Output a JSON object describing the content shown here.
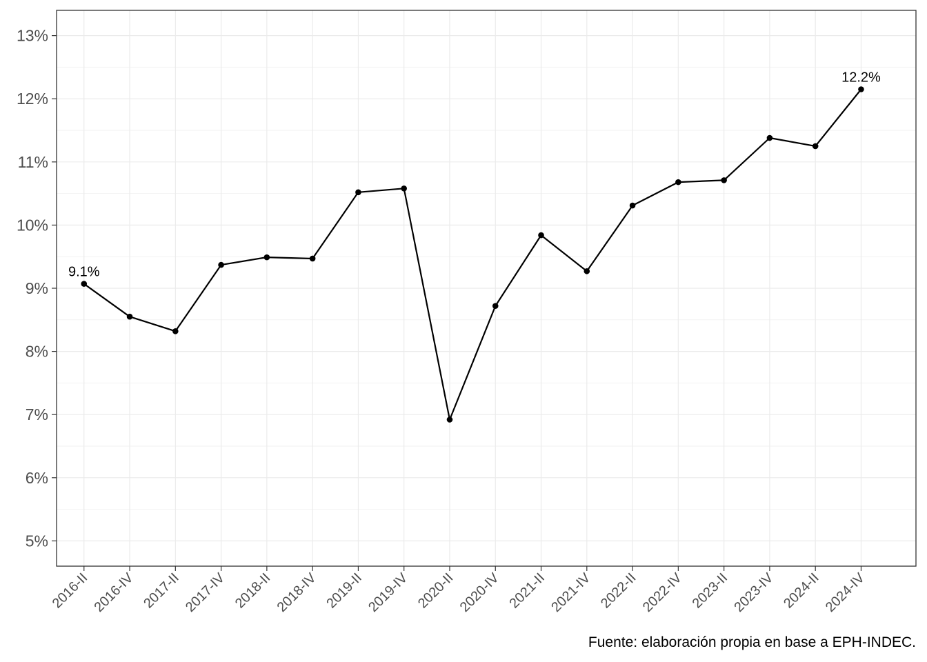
{
  "chart_data": {
    "type": "line",
    "title": "",
    "xlabel": "",
    "ylabel": "",
    "categories": [
      "2016-II",
      "2016-IV",
      "2017-II",
      "2017-IV",
      "2018-II",
      "2018-IV",
      "2019-II",
      "2019-IV",
      "2020-II",
      "2020-IV",
      "2021-II",
      "2021-IV",
      "2022-II",
      "2022-IV",
      "2023-II",
      "2023-IV",
      "2024-II",
      "2024-IV"
    ],
    "series": [
      {
        "values": [
          9.07,
          8.55,
          8.32,
          9.37,
          9.49,
          9.47,
          10.52,
          10.58,
          6.92,
          8.72,
          9.84,
          9.27,
          10.31,
          10.68,
          10.71,
          11.38,
          11.25,
          12.15
        ]
      }
    ],
    "y_ticks": [
      {
        "value": 5,
        "label": "5%"
      },
      {
        "value": 6,
        "label": "6%"
      },
      {
        "value": 7,
        "label": "7%"
      },
      {
        "value": 8,
        "label": "8%"
      },
      {
        "value": 9,
        "label": "9%"
      },
      {
        "value": 10,
        "label": "10%"
      },
      {
        "value": 11,
        "label": "11%"
      },
      {
        "value": 12,
        "label": "12%"
      },
      {
        "value": 13,
        "label": "13%"
      }
    ],
    "ylim": [
      4.6,
      13.4
    ],
    "grid": true,
    "line_color": "#000000",
    "annotations": [
      {
        "index": 0,
        "text": "9.1%"
      },
      {
        "index": 17,
        "text": "12.2%"
      }
    ],
    "caption": "Fuente: elaboración propia en base a EPH-INDEC."
  }
}
